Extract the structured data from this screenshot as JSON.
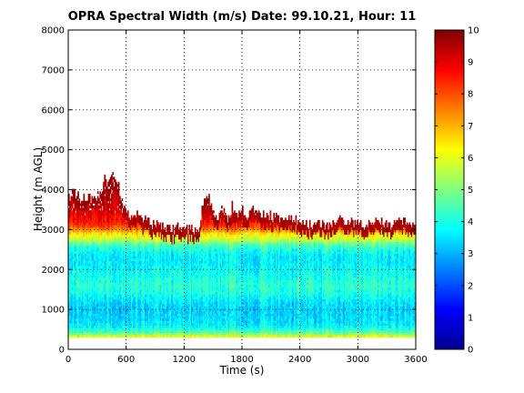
{
  "chart_data": {
    "type": "heatmap",
    "title": "OPRA Spectral Width (m/s)  Date: 99.10.21, Hour: 11",
    "xlabel": "Time (s)",
    "ylabel": "Height (m AGL)",
    "xlim": [
      0,
      3600
    ],
    "ylim": [
      0,
      8000
    ],
    "x_ticks": [
      "0",
      "600",
      "1200",
      "1800",
      "2400",
      "3000",
      "3600"
    ],
    "y_ticks": [
      "0",
      "1000",
      "2000",
      "3000",
      "4000",
      "5000",
      "6000",
      "7000",
      "8000"
    ],
    "grid": true,
    "colorscale": "jet",
    "colorbar": {
      "range": [
        0,
        10
      ],
      "ticks": [
        "0",
        "1",
        "2",
        "3",
        "4",
        "5",
        "6",
        "7",
        "8",
        "9",
        "10"
      ]
    },
    "data_height_range": [
      300,
      4300
    ],
    "echo_top_profile": {
      "time": [
        0,
        60,
        120,
        200,
        250,
        300,
        350,
        380,
        400,
        450,
        500,
        520,
        550,
        580,
        600,
        650,
        700,
        750,
        800,
        850,
        900,
        950,
        1000,
        1050,
        1100,
        1150,
        1200,
        1250,
        1300,
        1350,
        1400,
        1450,
        1500,
        1550,
        1600,
        1650,
        1700,
        1750,
        1800,
        1850,
        1900,
        1950,
        2000,
        2100,
        2200,
        2300,
        2400,
        2500,
        2600,
        2700,
        2800,
        2900,
        3000,
        3100,
        3200,
        3300,
        3400,
        3500,
        3600
      ],
      "height": [
        3800,
        3900,
        3800,
        3800,
        3700,
        3800,
        4000,
        4300,
        4100,
        4300,
        4300,
        4100,
        3700,
        3500,
        3400,
        3300,
        3400,
        3300,
        3200,
        3100,
        3100,
        3050,
        3000,
        3000,
        3000,
        3000,
        3000,
        3000,
        2950,
        2950,
        3700,
        3800,
        3400,
        3300,
        3500,
        3100,
        3600,
        3300,
        3500,
        3300,
        3500,
        3500,
        3400,
        3300,
        3300,
        3200,
        3200,
        3100,
        3100,
        3100,
        3200,
        3200,
        3100,
        3100,
        3200,
        3100,
        3100,
        3200,
        3100
      ]
    },
    "vertical_profile": {
      "height": [
        300,
        350,
        400,
        600,
        800,
        1000,
        1200,
        1400,
        1600,
        1800,
        2000,
        2200,
        2400,
        2600,
        2750,
        2900,
        3000,
        3100,
        3200,
        3400,
        3600,
        3800,
        4000,
        4300
      ],
      "width": [
        6.5,
        5.8,
        4.8,
        3.6,
        3.4,
        3.3,
        3.5,
        4.0,
        4.2,
        4.0,
        3.8,
        3.6,
        3.7,
        4.4,
        5.6,
        6.5,
        7.5,
        8.3,
        8.7,
        9.1,
        9.4,
        9.6,
        9.8,
        10.0
      ]
    }
  }
}
